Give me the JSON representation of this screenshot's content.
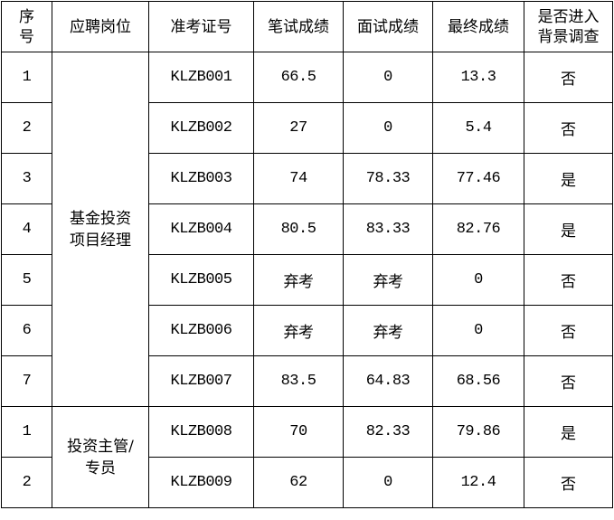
{
  "headers": [
    "序号",
    "应聘岗位",
    "准考证号",
    "笔试成绩",
    "面试成绩",
    "最终成绩",
    "是否进入背景调查"
  ],
  "header_lines": {
    "seq": [
      "序",
      "号"
    ],
    "bg": [
      "是否进入",
      "背景调查"
    ]
  },
  "groups": [
    {
      "position": "基金投资项目经理",
      "position_lines": [
        "基金投资",
        "项目经理"
      ]
    },
    {
      "position": "投资主管/专员",
      "position_lines": [
        "投资主管/",
        "专员"
      ]
    }
  ],
  "rows": [
    {
      "seq": "1",
      "id": "KLZB001",
      "written": "66.5",
      "interview": "0",
      "final": "13.3",
      "bg": "否"
    },
    {
      "seq": "2",
      "id": "KLZB002",
      "written": "27",
      "interview": "0",
      "final": "5.4",
      "bg": "否"
    },
    {
      "seq": "3",
      "id": "KLZB003",
      "written": "74",
      "interview": "78.33",
      "final": "77.46",
      "bg": "是"
    },
    {
      "seq": "4",
      "id": "KLZB004",
      "written": "80.5",
      "interview": "83.33",
      "final": "82.76",
      "bg": "是"
    },
    {
      "seq": "5",
      "id": "KLZB005",
      "written": "弃考",
      "interview": "弃考",
      "final": "0",
      "bg": "否"
    },
    {
      "seq": "6",
      "id": "KLZB006",
      "written": "弃考",
      "interview": "弃考",
      "final": "0",
      "bg": "否"
    },
    {
      "seq": "7",
      "id": "KLZB007",
      "written": "83.5",
      "interview": "64.83",
      "final": "68.56",
      "bg": "否"
    },
    {
      "seq": "1",
      "id": "KLZB008",
      "written": "70",
      "interview": "82.33",
      "final": "79.86",
      "bg": "是"
    },
    {
      "seq": "2",
      "id": "KLZB009",
      "written": "62",
      "interview": "0",
      "final": "12.4",
      "bg": "否"
    }
  ]
}
